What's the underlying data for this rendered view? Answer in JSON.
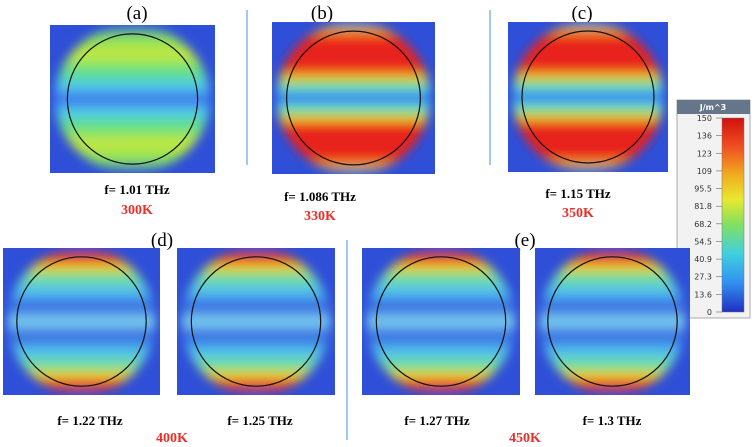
{
  "panels": [
    {
      "label": "(a)",
      "items": [
        {
          "frequency": "f= 1.01 THz"
        }
      ],
      "temperature": "300K"
    },
    {
      "label": "(b)",
      "items": [
        {
          "frequency": "f= 1.086 THz"
        }
      ],
      "temperature": "330K"
    },
    {
      "label": "(c)",
      "items": [
        {
          "frequency": "f= 1.15 THz"
        }
      ],
      "temperature": "350K"
    },
    {
      "label": "(d)",
      "items": [
        {
          "frequency": "f= 1.22 THz"
        },
        {
          "frequency": "f= 1.25 THz"
        }
      ],
      "temperature": "400K"
    },
    {
      "label": "(e)",
      "items": [
        {
          "frequency": "f= 1.27 THz"
        },
        {
          "frequency": "f= 1.3 THz"
        }
      ],
      "temperature": "450K"
    }
  ],
  "colorbar": {
    "unit": "J/m^3",
    "ticks": [
      "150",
      "136",
      "123",
      "109",
      "95.5",
      "81.8",
      "68.2",
      "54.5",
      "40.9",
      "27.3",
      "13.6",
      "0"
    ]
  }
}
